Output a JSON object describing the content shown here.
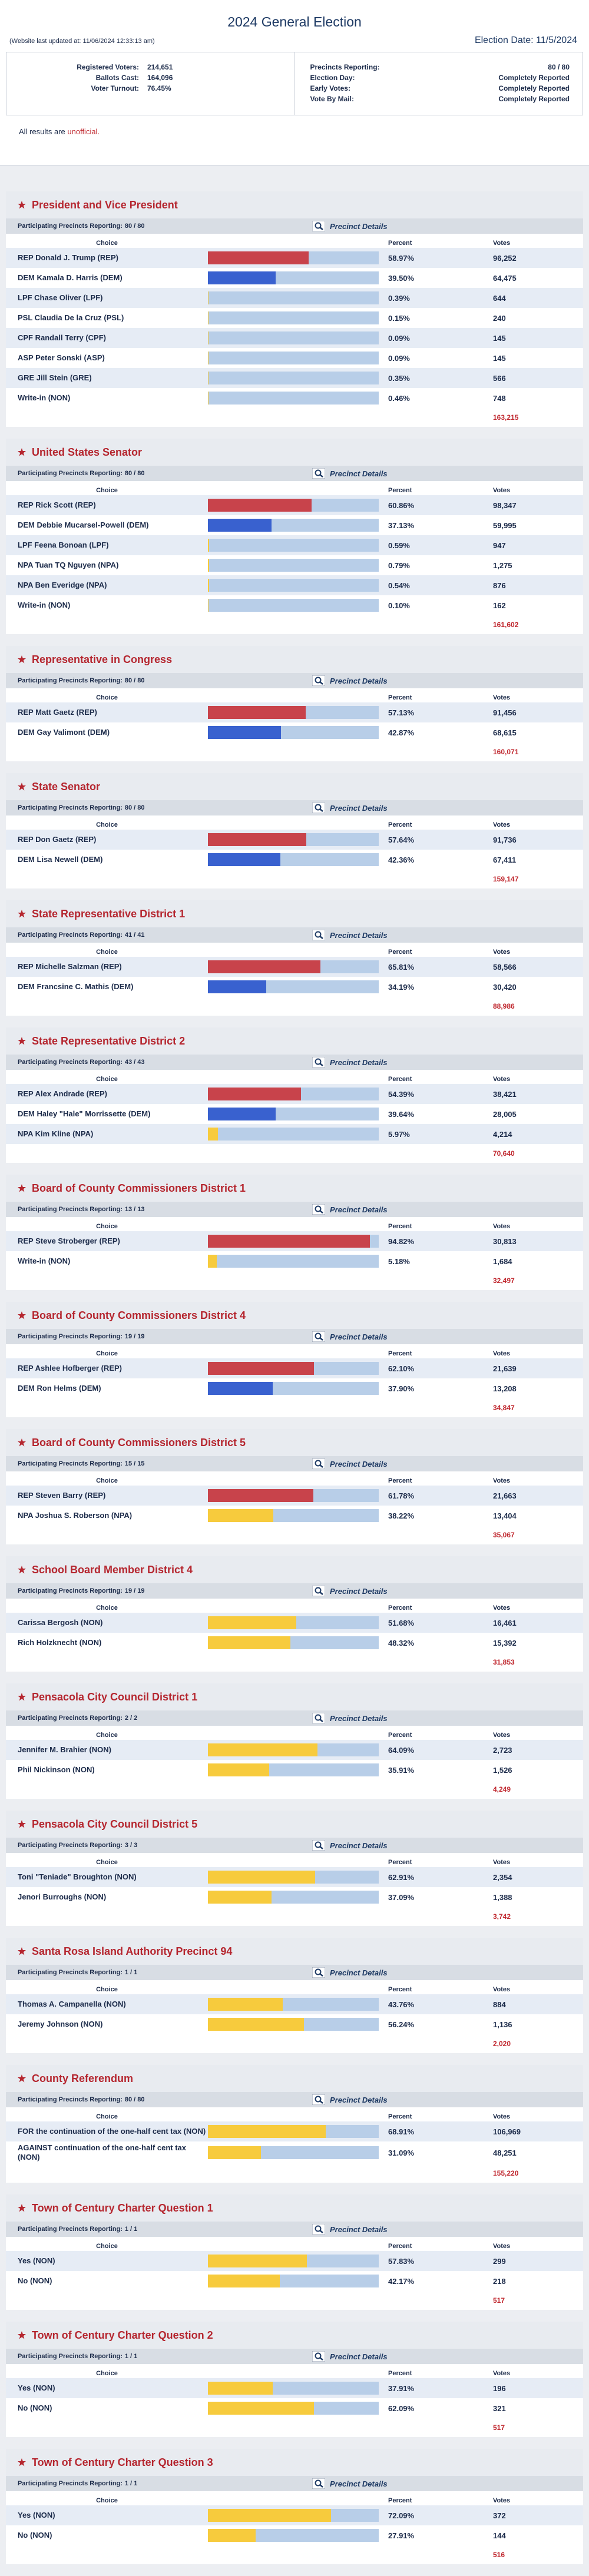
{
  "header": {
    "title": "2024 General Election",
    "updated": "(Website last updated at: 11/06/2024 12:33:13 am)",
    "election_date": "Election Date: 11/5/2024"
  },
  "summary": {
    "left": [
      {
        "label": "Registered Voters:",
        "value": "214,651"
      },
      {
        "label": "Ballots Cast:",
        "value": "164,096"
      },
      {
        "label": "Voter Turnout:",
        "value": "76.45%"
      }
    ],
    "right": [
      {
        "label": "Precincts Reporting:",
        "value": "80 / 80"
      },
      {
        "label": "Election Day:",
        "value": "Completely Reported"
      },
      {
        "label": "Early Votes:",
        "value": "Completely Reported"
      },
      {
        "label": "Vote By Mail:",
        "value": "Completely Reported"
      }
    ]
  },
  "notice": {
    "text": "All results are",
    "emphasis": "unofficial."
  },
  "labels": {
    "precincts": "Participating Precincts Reporting:",
    "precinct_details": "Precinct Details",
    "choice": "Choice",
    "percent": "Percent",
    "votes": "Votes"
  },
  "races": [
    {
      "title": "President and Vice President",
      "precincts": "80 / 80",
      "total": "163,215",
      "candidates": [
        {
          "name": "REP Donald J. Trump (REP)",
          "percent": 58.97,
          "percent_label": "58.97%",
          "votes": "96,252",
          "color": "#c8434b"
        },
        {
          "name": "DEM Kamala D. Harris (DEM)",
          "percent": 39.5,
          "percent_label": "39.50%",
          "votes": "64,475",
          "color": "#3961cf"
        },
        {
          "name": "LPF Chase Oliver (LPF)",
          "percent": 0.39,
          "percent_label": "0.39%",
          "votes": "644",
          "color": "#f7cb3d"
        },
        {
          "name": "PSL Claudia De la Cruz (PSL)",
          "percent": 0.15,
          "percent_label": "0.15%",
          "votes": "240",
          "color": "#f7cb3d"
        },
        {
          "name": "CPF Randall Terry (CPF)",
          "percent": 0.09,
          "percent_label": "0.09%",
          "votes": "145",
          "color": "#f7cb3d"
        },
        {
          "name": "ASP Peter Sonski (ASP)",
          "percent": 0.09,
          "percent_label": "0.09%",
          "votes": "145",
          "color": "#f7cb3d"
        },
        {
          "name": "GRE Jill Stein (GRE)",
          "percent": 0.35,
          "percent_label": "0.35%",
          "votes": "566",
          "color": "#f7cb3d"
        },
        {
          "name": "Write-in (NON)",
          "percent": 0.46,
          "percent_label": "0.46%",
          "votes": "748",
          "color": "#f7cb3d"
        }
      ]
    },
    {
      "title": "United States Senator",
      "precincts": "80 / 80",
      "total": "161,602",
      "candidates": [
        {
          "name": "REP Rick Scott (REP)",
          "percent": 60.86,
          "percent_label": "60.86%",
          "votes": "98,347",
          "color": "#c8434b"
        },
        {
          "name": "DEM Debbie Mucarsel-Powell (DEM)",
          "percent": 37.13,
          "percent_label": "37.13%",
          "votes": "59,995",
          "color": "#3961cf"
        },
        {
          "name": "LPF Feena Bonoan (LPF)",
          "percent": 0.59,
          "percent_label": "0.59%",
          "votes": "947",
          "color": "#f7cb3d"
        },
        {
          "name": "NPA Tuan TQ Nguyen (NPA)",
          "percent": 0.79,
          "percent_label": "0.79%",
          "votes": "1,275",
          "color": "#f7cb3d"
        },
        {
          "name": "NPA Ben Everidge (NPA)",
          "percent": 0.54,
          "percent_label": "0.54%",
          "votes": "876",
          "color": "#f7cb3d"
        },
        {
          "name": "Write-in (NON)",
          "percent": 0.1,
          "percent_label": "0.10%",
          "votes": "162",
          "color": "#f7cb3d"
        }
      ]
    },
    {
      "title": "Representative in Congress",
      "precincts": "80 / 80",
      "total": "160,071",
      "candidates": [
        {
          "name": "REP Matt Gaetz (REP)",
          "percent": 57.13,
          "percent_label": "57.13%",
          "votes": "91,456",
          "color": "#c8434b"
        },
        {
          "name": "DEM Gay Valimont (DEM)",
          "percent": 42.87,
          "percent_label": "42.87%",
          "votes": "68,615",
          "color": "#3961cf"
        }
      ]
    },
    {
      "title": "State Senator",
      "precincts": "80 / 80",
      "total": "159,147",
      "candidates": [
        {
          "name": "REP Don Gaetz (REP)",
          "percent": 57.64,
          "percent_label": "57.64%",
          "votes": "91,736",
          "color": "#c8434b"
        },
        {
          "name": "DEM Lisa Newell (DEM)",
          "percent": 42.36,
          "percent_label": "42.36%",
          "votes": "67,411",
          "color": "#3961cf"
        }
      ]
    },
    {
      "title": "State Representative District 1",
      "precincts": "41 / 41",
      "total": "88,986",
      "candidates": [
        {
          "name": "REP Michelle Salzman (REP)",
          "percent": 65.81,
          "percent_label": "65.81%",
          "votes": "58,566",
          "color": "#c8434b"
        },
        {
          "name": "DEM Francsine C. Mathis (DEM)",
          "percent": 34.19,
          "percent_label": "34.19%",
          "votes": "30,420",
          "color": "#3961cf"
        }
      ]
    },
    {
      "title": "State Representative District 2",
      "precincts": "43 / 43",
      "total": "70,640",
      "candidates": [
        {
          "name": "REP Alex Andrade (REP)",
          "percent": 54.39,
          "percent_label": "54.39%",
          "votes": "38,421",
          "color": "#c8434b"
        },
        {
          "name": "DEM Haley \"Hale\" Morrissette (DEM)",
          "percent": 39.64,
          "percent_label": "39.64%",
          "votes": "28,005",
          "color": "#3961cf"
        },
        {
          "name": "NPA Kim Kline (NPA)",
          "percent": 5.97,
          "percent_label": "5.97%",
          "votes": "4,214",
          "color": "#f7cb3d"
        }
      ]
    },
    {
      "title": "Board of County Commissioners District 1",
      "precincts": "13 / 13",
      "total": "32,497",
      "candidates": [
        {
          "name": "REP Steve Stroberger (REP)",
          "percent": 94.82,
          "percent_label": "94.82%",
          "votes": "30,813",
          "color": "#c8434b"
        },
        {
          "name": "Write-in (NON)",
          "percent": 5.18,
          "percent_label": "5.18%",
          "votes": "1,684",
          "color": "#f7cb3d"
        }
      ]
    },
    {
      "title": "Board of County Commissioners District 4",
      "precincts": "19 / 19",
      "total": "34,847",
      "candidates": [
        {
          "name": "REP Ashlee Hofberger (REP)",
          "percent": 62.1,
          "percent_label": "62.10%",
          "votes": "21,639",
          "color": "#c8434b"
        },
        {
          "name": "DEM Ron Helms (DEM)",
          "percent": 37.9,
          "percent_label": "37.90%",
          "votes": "13,208",
          "color": "#3961cf"
        }
      ]
    },
    {
      "title": "Board of County Commissioners District 5",
      "precincts": "15 / 15",
      "total": "35,067",
      "candidates": [
        {
          "name": "REP Steven Barry (REP)",
          "percent": 61.78,
          "percent_label": "61.78%",
          "votes": "21,663",
          "color": "#c8434b"
        },
        {
          "name": "NPA Joshua S. Roberson (NPA)",
          "percent": 38.22,
          "percent_label": "38.22%",
          "votes": "13,404",
          "color": "#f7cb3d"
        }
      ]
    },
    {
      "title": "School Board Member District 4",
      "precincts": "19 / 19",
      "total": "31,853",
      "candidates": [
        {
          "name": "Carissa Bergosh (NON)",
          "percent": 51.68,
          "percent_label": "51.68%",
          "votes": "16,461",
          "color": "#f7cb3d"
        },
        {
          "name": "Rich Holzknecht (NON)",
          "percent": 48.32,
          "percent_label": "48.32%",
          "votes": "15,392",
          "color": "#f7cb3d"
        }
      ]
    },
    {
      "title": "Pensacola City Council District 1",
      "precincts": "2 / 2",
      "total": "4,249",
      "candidates": [
        {
          "name": "Jennifer M. Brahier (NON)",
          "percent": 64.09,
          "percent_label": "64.09%",
          "votes": "2,723",
          "color": "#f7cb3d"
        },
        {
          "name": "Phil Nickinson (NON)",
          "percent": 35.91,
          "percent_label": "35.91%",
          "votes": "1,526",
          "color": "#f7cb3d"
        }
      ]
    },
    {
      "title": "Pensacola City Council District 5",
      "precincts": "3 / 3",
      "total": "3,742",
      "candidates": [
        {
          "name": "Toni \"Teniade\" Broughton (NON)",
          "percent": 62.91,
          "percent_label": "62.91%",
          "votes": "2,354",
          "color": "#f7cb3d"
        },
        {
          "name": "Jenori Burroughs (NON)",
          "percent": 37.09,
          "percent_label": "37.09%",
          "votes": "1,388",
          "color": "#f7cb3d"
        }
      ]
    },
    {
      "title": "Santa Rosa Island Authority Precinct 94",
      "precincts": "1 / 1",
      "total": "2,020",
      "candidates": [
        {
          "name": "Thomas A. Campanella (NON)",
          "percent": 43.76,
          "percent_label": "43.76%",
          "votes": "884",
          "color": "#f7cb3d"
        },
        {
          "name": "Jeremy Johnson (NON)",
          "percent": 56.24,
          "percent_label": "56.24%",
          "votes": "1,136",
          "color": "#f7cb3d"
        }
      ]
    },
    {
      "title": "County Referendum",
      "precincts": "80 / 80",
      "total": "155,220",
      "candidates": [
        {
          "name": "FOR the continuation of the one-half cent tax (NON)",
          "percent": 68.91,
          "percent_label": "68.91%",
          "votes": "106,969",
          "color": "#f7cb3d"
        },
        {
          "name": "AGAINST continuation of the one-half cent tax (NON)",
          "percent": 31.09,
          "percent_label": "31.09%",
          "votes": "48,251",
          "color": "#f7cb3d"
        }
      ]
    },
    {
      "title": "Town of Century Charter Question 1",
      "precincts": "1 / 1",
      "total": "517",
      "candidates": [
        {
          "name": "Yes (NON)",
          "percent": 57.83,
          "percent_label": "57.83%",
          "votes": "299",
          "color": "#f7cb3d"
        },
        {
          "name": "No (NON)",
          "percent": 42.17,
          "percent_label": "42.17%",
          "votes": "218",
          "color": "#f7cb3d"
        }
      ]
    },
    {
      "title": "Town of Century Charter Question 2",
      "precincts": "1 / 1",
      "total": "517",
      "candidates": [
        {
          "name": "Yes (NON)",
          "percent": 37.91,
          "percent_label": "37.91%",
          "votes": "196",
          "color": "#f7cb3d"
        },
        {
          "name": "No (NON)",
          "percent": 62.09,
          "percent_label": "62.09%",
          "votes": "321",
          "color": "#f7cb3d"
        }
      ]
    },
    {
      "title": "Town of Century Charter Question 3",
      "precincts": "1 / 1",
      "total": "516",
      "candidates": [
        {
          "name": "Yes (NON)",
          "percent": 72.09,
          "percent_label": "72.09%",
          "votes": "372",
          "color": "#f7cb3d"
        },
        {
          "name": "No (NON)",
          "percent": 27.91,
          "percent_label": "27.91%",
          "votes": "144",
          "color": "#f7cb3d"
        }
      ]
    }
  ]
}
